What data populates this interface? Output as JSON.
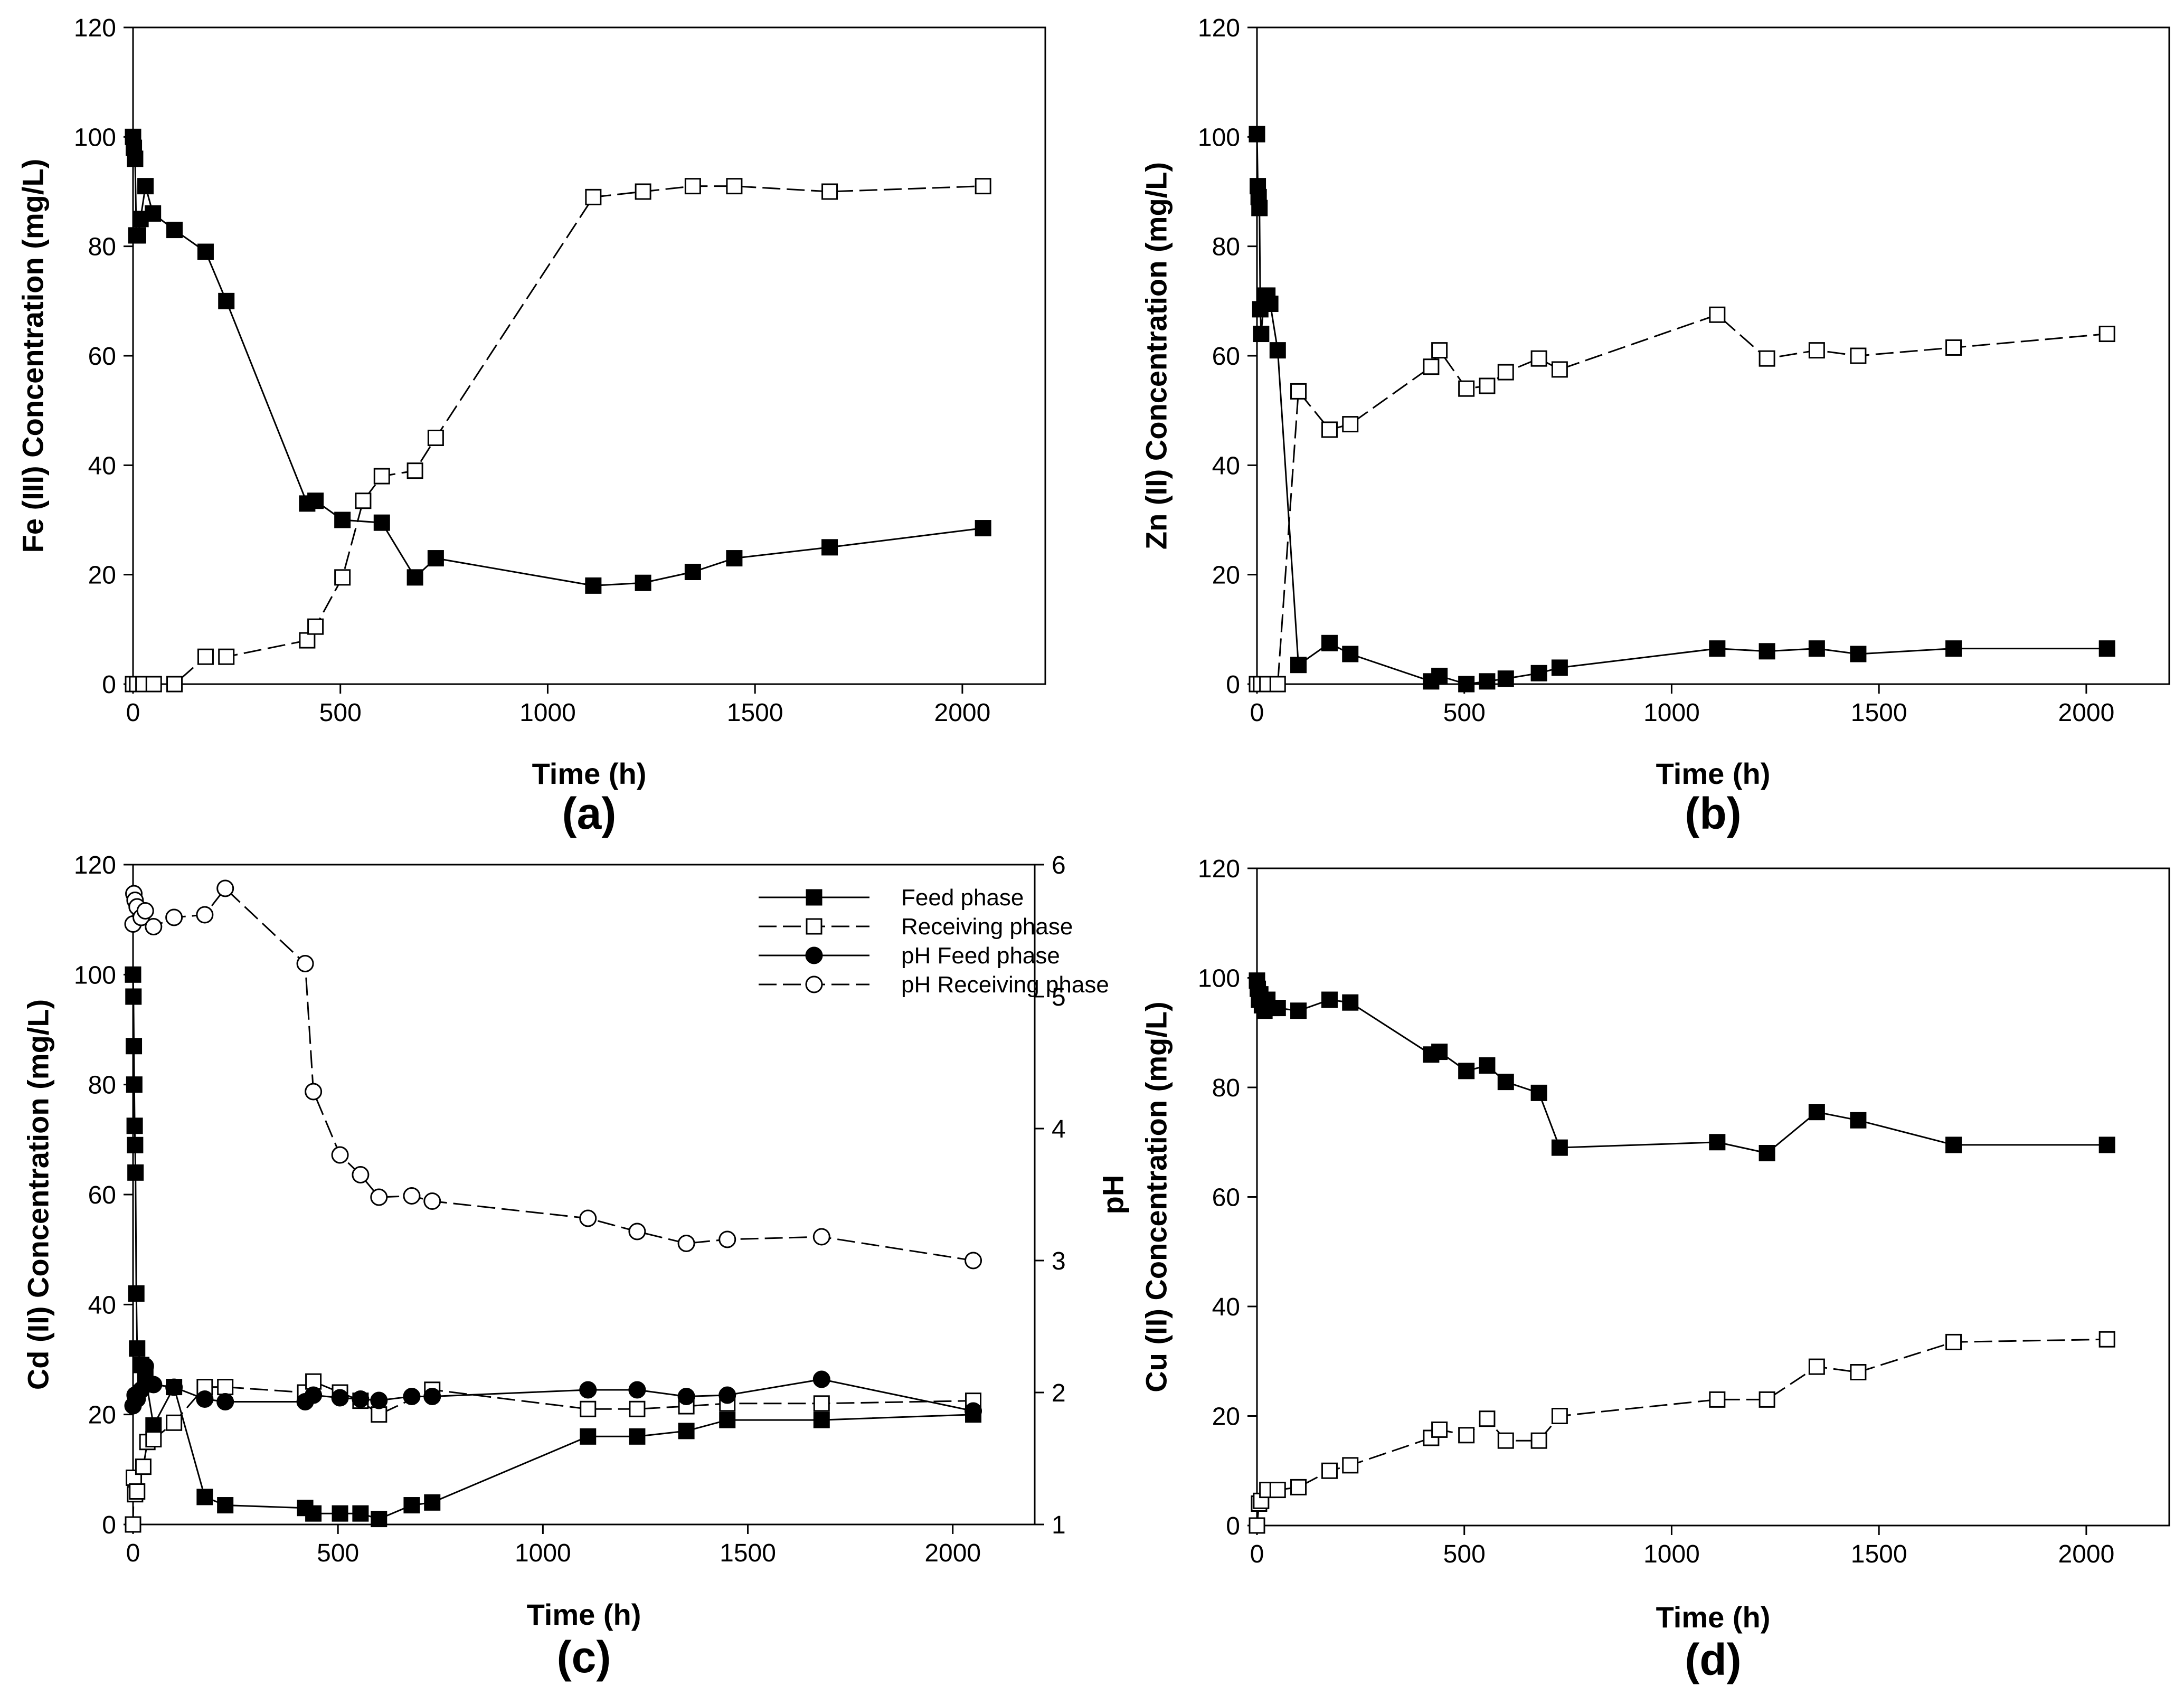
{
  "figure": {
    "panels": [
      "(a)",
      "(b)",
      "(c)",
      "(d)"
    ]
  },
  "legend": {
    "entries": [
      "Feed phase",
      "Receiving phase",
      "pH Feed phase",
      "pH Receiving phase"
    ]
  },
  "chart_data": [
    {
      "id": "a",
      "panel_label": "(a)",
      "type": "line",
      "xlabel": "Time (h)",
      "ylabel": "Fe (III) Concentration (mg/L)",
      "xlim": [
        0,
        2200
      ],
      "ylim": [
        0,
        120
      ],
      "xticks": [
        0,
        500,
        1000,
        1500,
        2000
      ],
      "yticks": [
        0,
        20,
        40,
        60,
        80,
        100,
        120
      ],
      "series": [
        {
          "marker": "square-filled",
          "dash": "solid",
          "x": [
            0,
            2,
            5,
            8,
            12,
            18,
            30,
            48,
            100,
            175,
            225,
            420,
            440,
            505,
            600,
            680,
            730,
            1110,
            1230,
            1350,
            1450,
            1680,
            2050
          ],
          "y": [
            100,
            98,
            96,
            82,
            82,
            85,
            91,
            86,
            83,
            79,
            70,
            33,
            33.5,
            30,
            29.5,
            19.5,
            23,
            18,
            18.5,
            20.5,
            23,
            25,
            28.5
          ]
        },
        {
          "marker": "square-open",
          "dash": "dashed",
          "x": [
            0,
            10,
            25,
            50,
            100,
            175,
            225,
            420,
            440,
            505,
            555,
            600,
            680,
            730,
            1110,
            1230,
            1350,
            1450,
            1680,
            2050
          ],
          "y": [
            0,
            0,
            0,
            0,
            0,
            5,
            5,
            8,
            10.5,
            19.5,
            33.5,
            38,
            39,
            45,
            89,
            90,
            91,
            91,
            90,
            91
          ]
        }
      ]
    },
    {
      "id": "b",
      "panel_label": "(b)",
      "type": "line",
      "xlabel": "Time (h)",
      "ylabel": "Zn (II) Concentration (mg/L)",
      "xlim": [
        0,
        2200
      ],
      "ylim": [
        0,
        120
      ],
      "xticks": [
        0,
        500,
        1000,
        1500,
        2000
      ],
      "yticks": [
        0,
        20,
        40,
        60,
        80,
        100,
        120
      ],
      "series": [
        {
          "marker": "square-filled",
          "dash": "solid",
          "x": [
            0,
            2,
            4,
            6,
            8,
            10,
            18,
            25,
            32,
            50,
            100,
            175,
            225,
            420,
            440,
            505,
            555,
            600,
            680,
            730,
            1110,
            1230,
            1350,
            1450,
            1680,
            2050
          ],
          "y": [
            100.5,
            91,
            89,
            87,
            68.5,
            64,
            71,
            71,
            69.5,
            61,
            3.5,
            7.5,
            5.5,
            0.5,
            1.5,
            0,
            0.5,
            1,
            2,
            3,
            6.5,
            6,
            6.5,
            5.5,
            6.5,
            6.5
          ]
        },
        {
          "marker": "square-open",
          "dash": "dashed",
          "x": [
            0,
            10,
            25,
            50,
            100,
            175,
            225,
            420,
            440,
            505,
            555,
            600,
            680,
            730,
            1110,
            1230,
            1350,
            1450,
            1680,
            2050
          ],
          "y": [
            0,
            0,
            0,
            0,
            53.5,
            46.5,
            47.5,
            58,
            61,
            54,
            54.5,
            57,
            59.5,
            57.5,
            67.5,
            59.5,
            61,
            60,
            61.5,
            64
          ]
        }
      ]
    },
    {
      "id": "c",
      "panel_label": "(c)",
      "type": "line",
      "xlabel": "Time (h)",
      "ylabel": "Cd (II) Concentration (mg/L)",
      "y2label": "pH",
      "xlim": [
        0,
        2200
      ],
      "ylim": [
        0,
        120
      ],
      "y2lim": [
        1,
        6
      ],
      "xticks": [
        0,
        500,
        1000,
        1500,
        2000
      ],
      "yticks": [
        0,
        20,
        40,
        60,
        80,
        100,
        120
      ],
      "y2ticks": [
        1,
        2,
        3,
        4,
        5,
        6
      ],
      "legend_position": "top-right",
      "series": [
        {
          "name": "Feed phase",
          "marker": "square-filled",
          "dash": "solid",
          "axis": "left",
          "x": [
            0,
            1,
            2,
            3,
            4,
            5,
            6,
            8,
            10,
            20,
            30,
            50,
            100,
            175,
            225,
            420,
            440,
            505,
            555,
            600,
            680,
            730,
            1110,
            1230,
            1350,
            1450,
            1680,
            2050
          ],
          "y": [
            100,
            96,
            87,
            80,
            72.5,
            69,
            64,
            42,
            32,
            29,
            27,
            18,
            25,
            5,
            3.5,
            3,
            2,
            2,
            2,
            1,
            3.5,
            4,
            16,
            16,
            17,
            19,
            19,
            20
          ]
        },
        {
          "name": "Receiving phase",
          "marker": "square-open",
          "dash": "dashed",
          "axis": "left",
          "x": [
            0,
            2,
            5,
            10,
            25,
            35,
            50,
            100,
            175,
            225,
            420,
            440,
            505,
            555,
            600,
            730,
            1110,
            1230,
            1350,
            1450,
            1680,
            2050
          ],
          "y": [
            0,
            8.5,
            5.5,
            6,
            10.5,
            15,
            15.5,
            18.5,
            25,
            25,
            24,
            26,
            24,
            22.5,
            20,
            24.5,
            21,
            21,
            21.5,
            22,
            22,
            22.5
          ]
        },
        {
          "name": "pH Feed phase",
          "marker": "circle-filled",
          "dash": "solid",
          "axis": "right",
          "x": [
            0,
            5,
            10,
            20,
            30,
            50,
            100,
            175,
            225,
            420,
            440,
            505,
            555,
            600,
            680,
            730,
            1110,
            1230,
            1350,
            1450,
            1680,
            2050
          ],
          "y": [
            1.9,
            1.98,
            1.95,
            2.02,
            2.2,
            2.06,
            2.04,
            1.95,
            1.93,
            1.93,
            1.98,
            1.96,
            1.95,
            1.94,
            1.97,
            1.97,
            2.02,
            2.02,
            1.97,
            1.98,
            2.1,
            1.86
          ]
        },
        {
          "name": "pH Receiving phase",
          "marker": "circle-open",
          "dash": "dashed",
          "axis": "right",
          "x": [
            0,
            2,
            5,
            10,
            20,
            30,
            50,
            100,
            175,
            225,
            420,
            440,
            505,
            555,
            600,
            680,
            730,
            1110,
            1230,
            1350,
            1450,
            1680,
            2050
          ],
          "y": [
            5.55,
            5.78,
            5.73,
            5.68,
            5.6,
            5.65,
            5.53,
            5.6,
            5.62,
            5.82,
            5.25,
            4.28,
            3.8,
            3.65,
            3.48,
            3.49,
            3.45,
            3.32,
            3.22,
            3.13,
            3.16,
            3.18,
            3.0
          ]
        }
      ]
    },
    {
      "id": "d",
      "panel_label": "(d)",
      "type": "line",
      "xlabel": "Time (h)",
      "ylabel": "Cu (II) Concentration (mg/L)",
      "xlim": [
        0,
        2200
      ],
      "ylim": [
        0,
        120
      ],
      "xticks": [
        0,
        500,
        1000,
        1500,
        2000
      ],
      "yticks": [
        0,
        20,
        40,
        60,
        80,
        100,
        120
      ],
      "series": [
        {
          "marker": "square-filled",
          "dash": "solid",
          "x": [
            0,
            2,
            5,
            8,
            12,
            18,
            25,
            35,
            50,
            100,
            175,
            225,
            420,
            440,
            505,
            555,
            600,
            680,
            730,
            1110,
            1230,
            1350,
            1450,
            1680,
            2050
          ],
          "y": [
            99.5,
            98,
            96,
            97,
            95,
            94,
            96,
            94.5,
            94.5,
            94,
            96,
            95.5,
            86,
            86.5,
            83,
            84,
            81,
            79,
            69,
            70,
            68,
            75.5,
            74,
            69.5,
            69.5
          ]
        },
        {
          "marker": "square-open",
          "dash": "dashed",
          "x": [
            0,
            5,
            10,
            25,
            50,
            100,
            175,
            225,
            420,
            440,
            505,
            555,
            600,
            680,
            730,
            1110,
            1230,
            1350,
            1450,
            1680,
            2050
          ],
          "y": [
            0,
            4,
            4.5,
            6.5,
            6.5,
            7,
            10,
            11,
            16,
            17.5,
            16.5,
            19.5,
            15.5,
            15.5,
            20,
            23,
            23,
            29,
            28,
            33.5,
            34
          ]
        }
      ]
    }
  ]
}
